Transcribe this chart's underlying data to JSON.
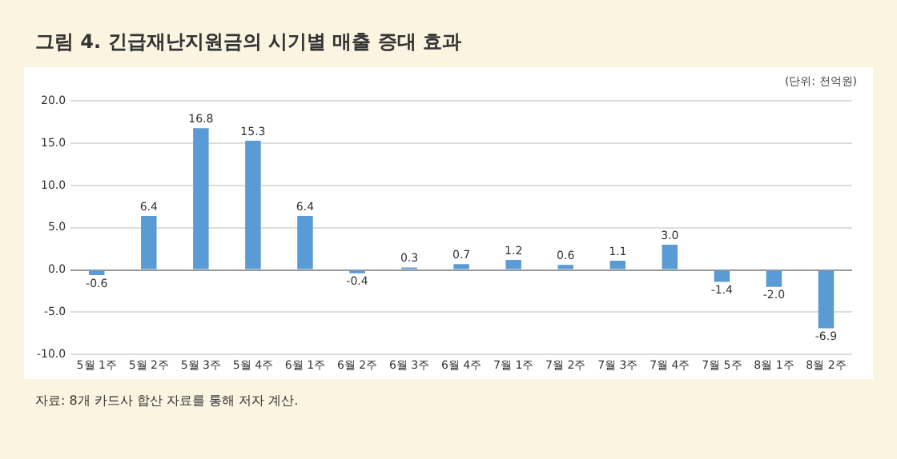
{
  "chart_data": {
    "type": "bar",
    "title": "그림 4.  긴급재난지원금의 시기별 매출 증대 효과",
    "categories": [
      "5월 1주",
      "5월 2주",
      "5월 3주",
      "5월 4주",
      "6월 1주",
      "6월 2주",
      "6월 3주",
      "6월 4주",
      "7월 1주",
      "7월 2주",
      "7월 3주",
      "7월 4주",
      "7월 5주",
      "8월 1주",
      "8월 2주"
    ],
    "values": [
      -0.6,
      6.4,
      16.8,
      15.3,
      6.4,
      -0.4,
      0.3,
      0.7,
      1.2,
      0.6,
      1.1,
      3.0,
      -1.4,
      -2.0,
      -6.9
    ],
    "value_labels": [
      "-0.6",
      "6.4",
      "16.8",
      "15.3",
      "6.4",
      "-0.4",
      "0.3",
      "0.7",
      "1.2",
      "0.6",
      "1.1",
      "3.0",
      "-1.4",
      "-2.0",
      "-6.9"
    ],
    "color": "#5b9bd5",
    "ylim": [
      -10,
      20
    ],
    "yticks": [
      {
        "value": -10,
        "label": "-10.0"
      },
      {
        "value": -5,
        "label": "-5.0"
      },
      {
        "value": 0,
        "label": "0.0"
      },
      {
        "value": 5,
        "label": "5.0"
      },
      {
        "value": 10,
        "label": "10.0"
      },
      {
        "value": 15,
        "label": "15.0"
      },
      {
        "value": 20,
        "label": "20.0"
      }
    ],
    "grid": "y",
    "legend": false,
    "annotations": [
      "(단위: 천억원)",
      "자료: 8개 카드사 합산 자료를 통해 저자 계산."
    ]
  }
}
